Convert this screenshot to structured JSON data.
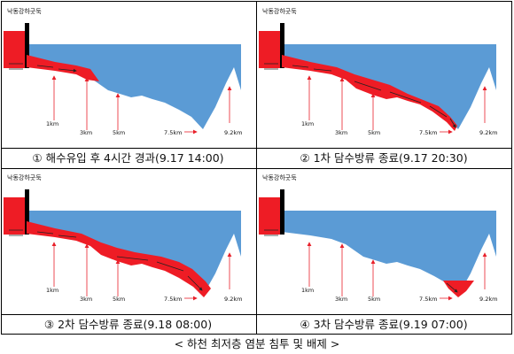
{
  "site_label": "낙동강하굿둑",
  "distance_labels": [
    "1km",
    "3km",
    "5km",
    "7.5km",
    "9.2km"
  ],
  "panels": [
    {
      "caption": "① 해수유입 후 4시간 경과(9.17 14:00)"
    },
    {
      "caption": "② 1차 담수방류 종료(9.17 20:30)"
    },
    {
      "caption": "③ 2차 담수방류 종료(9.18 08:00)"
    },
    {
      "caption": "④ 3차 담수방류 종료(9.19 07:00)"
    }
  ],
  "figure_title": "< 하천 최저층 염분 침투 및 배제 >",
  "colors": {
    "water": "#5b9bd5",
    "saltwater": "#ee1c25",
    "dam": "#000000",
    "arrow": "#e8202a"
  }
}
